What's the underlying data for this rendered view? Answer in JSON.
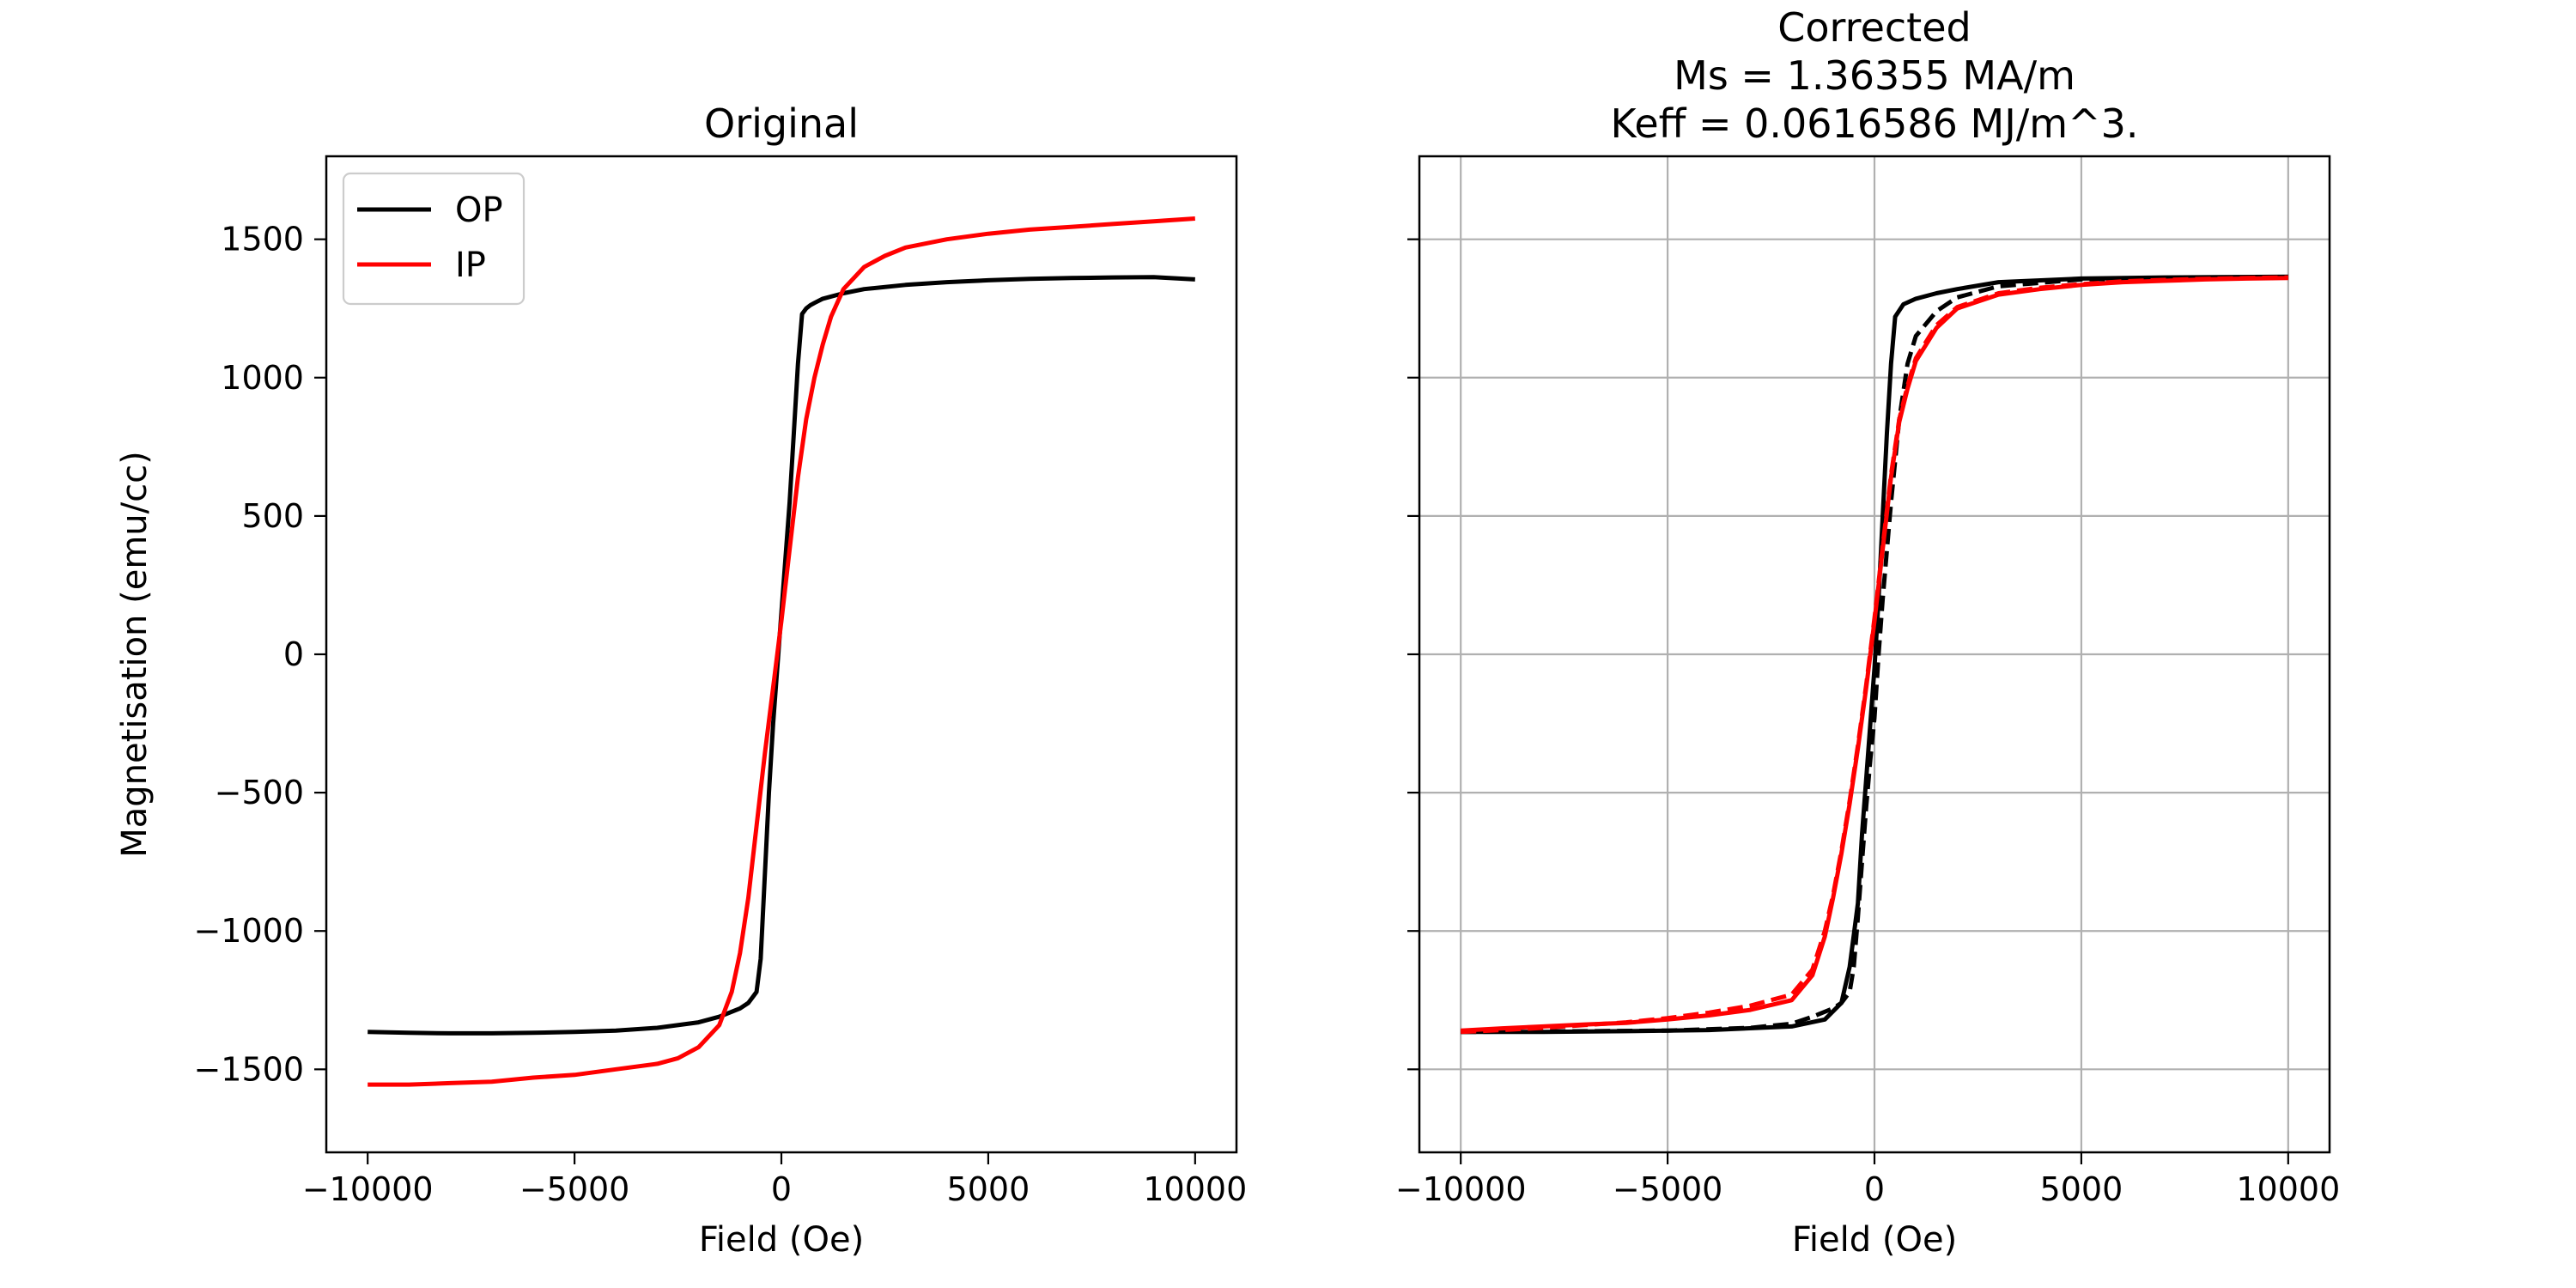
{
  "chart_data": [
    {
      "type": "line",
      "title_lines": [
        "Original"
      ],
      "xlabel": "Field (Oe)",
      "ylabel": "Magnetisation (emu/cc)",
      "xlim": [
        -11000,
        11000
      ],
      "ylim": [
        -1800,
        1800
      ],
      "xticks": [
        -10000,
        -5000,
        0,
        5000,
        10000
      ],
      "xtick_labels": [
        "−10000",
        "−5000",
        "0",
        "5000",
        "10000"
      ],
      "yticks": [
        -1500,
        -1000,
        -500,
        0,
        500,
        1000,
        1500
      ],
      "ytick_labels": [
        "−1500",
        "−1000",
        "−500",
        "0",
        "500",
        "1000",
        "1500"
      ],
      "grid": false,
      "legend": {
        "placement": "top-left",
        "entries": [
          "OP",
          "IP"
        ]
      },
      "series": [
        {
          "name": "OP",
          "color": "#000000",
          "dash": "solid",
          "x": [
            -10000,
            -9000,
            -8000,
            -7000,
            -6000,
            -5000,
            -4000,
            -3000,
            -2000,
            -1500,
            -1000,
            -800,
            -700,
            -600,
            -500,
            -400,
            -300,
            -200,
            -100,
            0,
            100,
            200,
            300,
            400,
            500,
            600,
            700,
            800,
            1000,
            1500,
            2000,
            3000,
            4000,
            5000,
            6000,
            7000,
            8000,
            9000,
            10000
          ],
          "y": [
            -1365,
            -1368,
            -1370,
            -1370,
            -1368,
            -1365,
            -1360,
            -1350,
            -1330,
            -1310,
            -1280,
            -1260,
            -1240,
            -1220,
            -1100,
            -800,
            -500,
            -250,
            -50,
            150,
            350,
            550,
            800,
            1050,
            1230,
            1250,
            1262,
            1270,
            1285,
            1305,
            1320,
            1335,
            1345,
            1352,
            1357,
            1360,
            1362,
            1363,
            1355
          ]
        },
        {
          "name": "IP",
          "color": "#ff0000",
          "dash": "solid",
          "x": [
            -10000,
            -9000,
            -8000,
            -7000,
            -6000,
            -5000,
            -4000,
            -3000,
            -2500,
            -2000,
            -1500,
            -1200,
            -1000,
            -800,
            -600,
            -400,
            -200,
            0,
            200,
            400,
            600,
            800,
            1000,
            1200,
            1500,
            2000,
            2500,
            3000,
            4000,
            5000,
            6000,
            7000,
            8000,
            9000,
            10000
          ],
          "y": [
            -1555,
            -1555,
            -1550,
            -1545,
            -1530,
            -1520,
            -1500,
            -1480,
            -1460,
            -1420,
            -1340,
            -1220,
            -1080,
            -880,
            -620,
            -360,
            -120,
            120,
            380,
            640,
            850,
            1000,
            1120,
            1220,
            1320,
            1400,
            1440,
            1470,
            1500,
            1520,
            1535,
            1545,
            1555,
            1565,
            1575
          ]
        }
      ]
    },
    {
      "type": "line",
      "title_lines": [
        "Corrected",
        "Ms = 1.36355 MA/m",
        "Keff = 0.0616586 MJ/m^3."
      ],
      "xlabel": "Field (Oe)",
      "ylabel": "",
      "xlim": [
        -11000,
        11000
      ],
      "ylim": [
        -1800,
        1800
      ],
      "xticks": [
        -10000,
        -5000,
        0,
        5000,
        10000
      ],
      "xtick_labels": [
        "−10000",
        "−5000",
        "0",
        "5000",
        "10000"
      ],
      "yticks": [
        -1500,
        -1000,
        -500,
        0,
        500,
        1000,
        1500
      ],
      "ytick_labels": [],
      "grid": true,
      "legend": null,
      "series": [
        {
          "name": "",
          "color": "#000000",
          "dash": "solid",
          "x": [
            -10000,
            -8000,
            -6000,
            -4000,
            -2000,
            -1200,
            -800,
            -600,
            -400,
            -300,
            -200,
            -100,
            0,
            100,
            200,
            300,
            400,
            500,
            700,
            1000,
            1500,
            2000,
            3000,
            5000,
            7000,
            10000
          ],
          "y": [
            -1365,
            -1365,
            -1362,
            -1358,
            -1345,
            -1320,
            -1260,
            -1130,
            -900,
            -650,
            -450,
            -250,
            -50,
            200,
            500,
            800,
            1050,
            1220,
            1265,
            1285,
            1305,
            1320,
            1345,
            1358,
            1362,
            1365
          ]
        },
        {
          "name": "",
          "color": "#000000",
          "dash": "dashed",
          "x": [
            -10000,
            -7000,
            -5000,
            -3000,
            -2000,
            -1500,
            -1000,
            -800,
            -700,
            -600,
            -500,
            -400,
            -300,
            -200,
            -100,
            0,
            100,
            200,
            400,
            600,
            800,
            1000,
            1500,
            2000,
            3000,
            5000,
            10000
          ],
          "y": [
            -1365,
            -1362,
            -1360,
            -1350,
            -1335,
            -1310,
            -1280,
            -1260,
            -1240,
            -1220,
            -1130,
            -950,
            -750,
            -550,
            -380,
            -230,
            0,
            200,
            550,
            850,
            1050,
            1150,
            1240,
            1290,
            1330,
            1355,
            1362
          ]
        },
        {
          "name": "",
          "color": "#ff0000",
          "dash": "solid",
          "x": [
            -10000,
            -9000,
            -8000,
            -7000,
            -6000,
            -5000,
            -4000,
            -3000,
            -2000,
            -1500,
            -1200,
            -1000,
            -800,
            -600,
            -400,
            -200,
            0,
            200,
            400,
            600,
            800,
            1000,
            1500,
            2000,
            3000,
            4000,
            5000,
            6000,
            7000,
            8000,
            9000,
            10000
          ],
          "y": [
            -1360,
            -1352,
            -1345,
            -1338,
            -1332,
            -1320,
            -1305,
            -1285,
            -1250,
            -1160,
            -1020,
            -880,
            -720,
            -540,
            -340,
            -120,
            120,
            380,
            640,
            840,
            960,
            1060,
            1180,
            1250,
            1300,
            1320,
            1335,
            1345,
            1350,
            1355,
            1358,
            1360
          ]
        },
        {
          "name": "",
          "color": "#ff0000",
          "dash": "dashed",
          "x": [
            -10000,
            -9000,
            -8000,
            -7000,
            -6000,
            -5000,
            -4000,
            -3000,
            -2000,
            -1500,
            -1200,
            -1000,
            -800,
            -600,
            -400,
            -200,
            0,
            200,
            400,
            600,
            800,
            1000,
            1500,
            2000,
            3000,
            4000,
            5000,
            6000,
            7000,
            8000,
            9000,
            10000
          ],
          "y": [
            -1365,
            -1358,
            -1350,
            -1340,
            -1330,
            -1315,
            -1295,
            -1270,
            -1230,
            -1140,
            -1000,
            -870,
            -710,
            -530,
            -330,
            -110,
            130,
            390,
            650,
            850,
            970,
            1070,
            1190,
            1255,
            1305,
            1325,
            1338,
            1348,
            1353,
            1357,
            1360,
            1362
          ]
        }
      ]
    }
  ]
}
